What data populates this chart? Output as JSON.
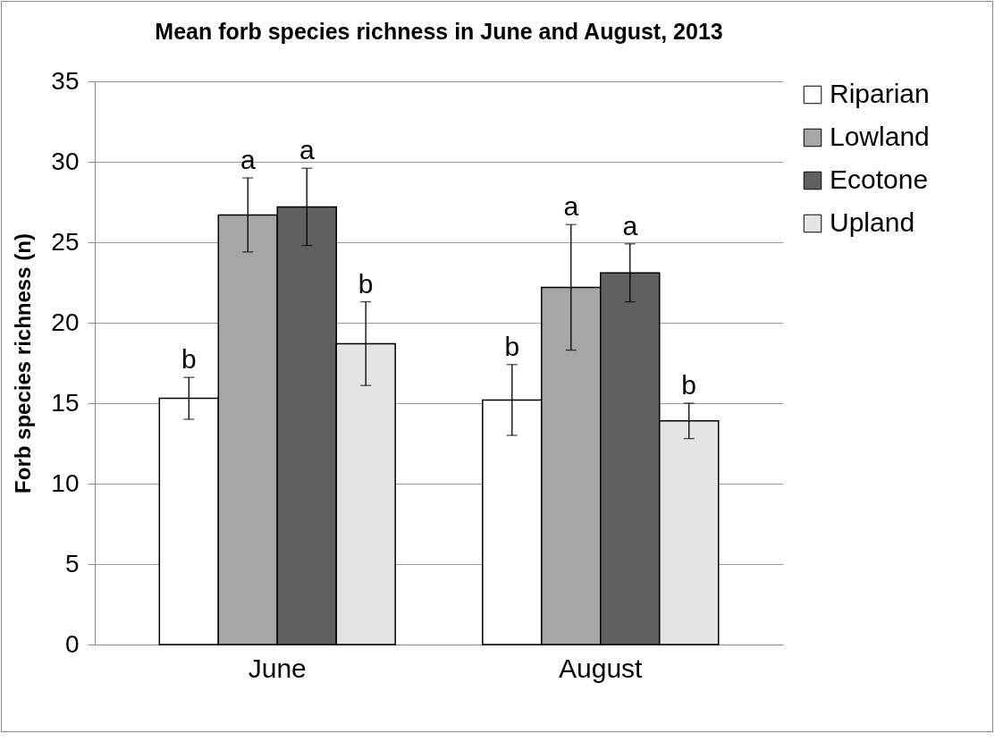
{
  "chart_data": {
    "type": "bar",
    "title": "Mean forb species richness in June and August, 2013",
    "ylabel": "Forb species richness (n)",
    "categories": [
      "June",
      "August"
    ],
    "series": [
      {
        "name": "Riparian",
        "color": "#ffffff",
        "values": [
          15.3,
          15.2
        ],
        "errors": [
          1.3,
          2.2
        ]
      },
      {
        "name": "Lowland",
        "color": "#a6a6a6",
        "values": [
          26.7,
          22.2
        ],
        "errors": [
          2.3,
          3.9
        ]
      },
      {
        "name": "Ecotone",
        "color": "#606060",
        "values": [
          27.2,
          23.1
        ],
        "errors": [
          2.4,
          1.8
        ]
      },
      {
        "name": "Upland",
        "color": "#e4e4e4",
        "values": [
          18.7,
          13.9
        ],
        "errors": [
          2.6,
          1.1
        ]
      }
    ],
    "annotations": [
      "b",
      "a",
      "a",
      "b",
      "b",
      "a",
      "a",
      "b"
    ],
    "ylim": [
      0,
      35
    ],
    "yticks": [
      0,
      5,
      10,
      15,
      20,
      25,
      30,
      35
    ],
    "grid": "y",
    "legend": "right"
  }
}
